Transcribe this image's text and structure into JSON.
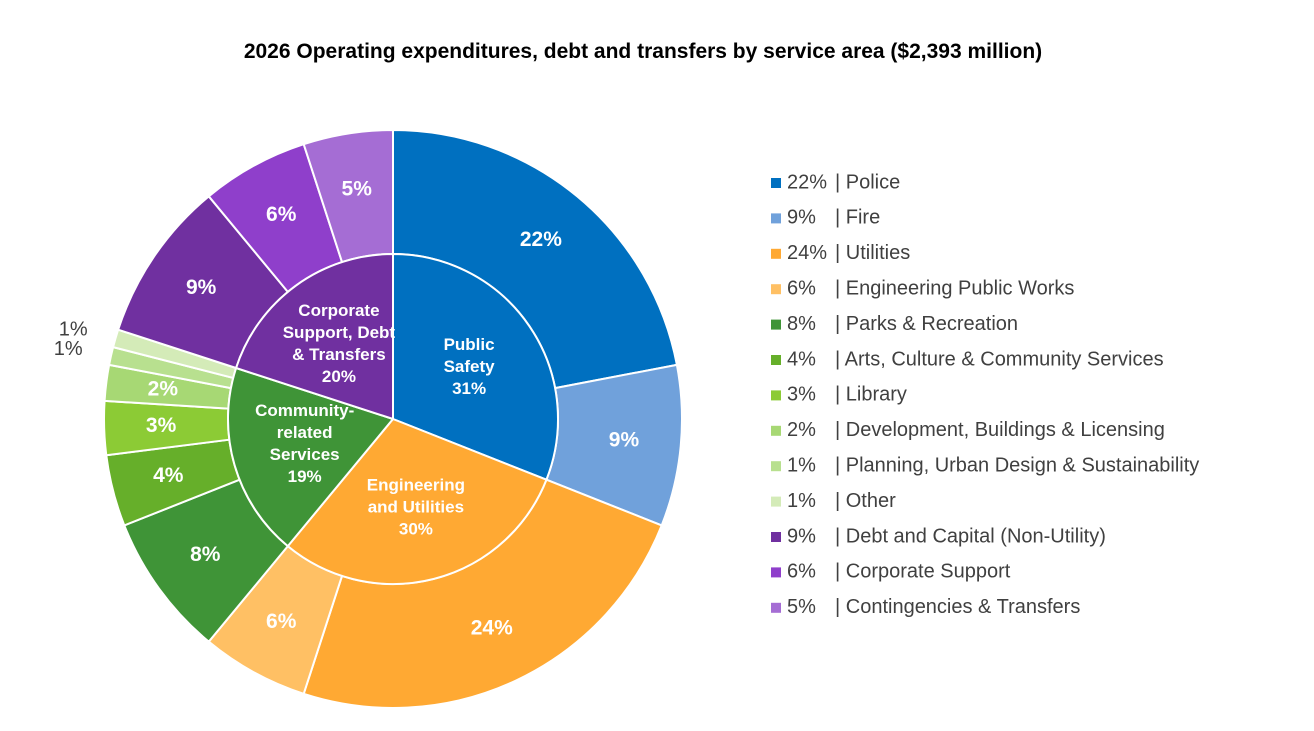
{
  "chart_data": {
    "type": "pie",
    "subtype": "nested-donut",
    "title": "2026 Operating expenditures, debt and transfers by service area ($2,393 million)",
    "legend_position": "right",
    "inner_ring": [
      {
        "name": "Public Safety",
        "lines": [
          "Public",
          "Safety"
        ],
        "value": 31,
        "label": "31%",
        "color": "#0070C0"
      },
      {
        "name": "Engineering and Utilities",
        "lines": [
          "Engineering",
          "and Utilities"
        ],
        "value": 30,
        "label": "30%",
        "color": "#FFA933"
      },
      {
        "name": "Community-related Services",
        "lines": [
          "Community-",
          "related",
          "Services"
        ],
        "value": 19,
        "label": "19%",
        "color": "#3F9437"
      },
      {
        "name": "Corporate Support, Debt & Transfers",
        "lines": [
          "Corporate",
          "Support, Debt",
          "& Transfers"
        ],
        "value": 20,
        "label": "20%",
        "color": "#7030A0"
      }
    ],
    "outer_ring": [
      {
        "name": "Police",
        "value": 22,
        "label": "22%",
        "legend_pct": "22%",
        "color": "#0070C0",
        "label_color": "#ffffff",
        "label_pos": "inside"
      },
      {
        "name": "Fire",
        "value": 9,
        "label": "9%",
        "legend_pct": "9%",
        "color": "#70A1DB",
        "label_color": "#ffffff",
        "label_pos": "inside"
      },
      {
        "name": "Utilities",
        "value": 24,
        "label": "24%",
        "legend_pct": "24%",
        "color": "#FFA933",
        "label_color": "#ffffff",
        "label_pos": "inside"
      },
      {
        "name": "Engineering Public Works",
        "value": 6,
        "label": "6%",
        "legend_pct": "6%",
        "color": "#FFC064",
        "label_color": "#ffffff",
        "label_pos": "inside"
      },
      {
        "name": "Parks & Recreation",
        "value": 8,
        "label": "8%",
        "legend_pct": "8%",
        "color": "#3F9437",
        "label_color": "#ffffff",
        "label_pos": "inside"
      },
      {
        "name": "Arts, Culture & Community Services",
        "value": 4,
        "label": "4%",
        "legend_pct": "4%",
        "color": "#66AF2A",
        "label_color": "#ffffff",
        "label_pos": "inside"
      },
      {
        "name": "Library",
        "value": 3,
        "label": "3%",
        "legend_pct": "3%",
        "color": "#8CCB35",
        "label_color": "#ffffff",
        "label_pos": "inside"
      },
      {
        "name": "Development, Buildings & Licensing",
        "value": 2,
        "label": "2%",
        "legend_pct": "2%",
        "color": "#A7D874",
        "label_color": "#ffffff",
        "label_pos": "inside"
      },
      {
        "name": "Planning, Urban Design & Sustainability",
        "value": 1,
        "label": "1%",
        "legend_pct": "1%",
        "color": "#B8E08F",
        "label_color": "#404040",
        "label_pos": "outside"
      },
      {
        "name": "Other",
        "value": 1,
        "label": "1%",
        "legend_pct": "1%",
        "color": "#D4EBB8",
        "label_color": "#404040",
        "label_pos": "outside"
      },
      {
        "name": "Debt and Capital (Non-Utility)",
        "value": 9,
        "label": "9%",
        "legend_pct": "9%",
        "color": "#7030A0",
        "label_color": "#ffffff",
        "label_pos": "inside"
      },
      {
        "name": "Corporate Support",
        "value": 6,
        "label": "6%",
        "legend_pct": "6%",
        "color": "#8F3FCB",
        "label_color": "#ffffff",
        "label_pos": "inside"
      },
      {
        "name": "Contingencies & Transfers",
        "value": 5,
        "label": "5%",
        "legend_pct": "5%",
        "color": "#A56DD4",
        "label_color": "#ffffff",
        "label_pos": "inside"
      }
    ]
  }
}
